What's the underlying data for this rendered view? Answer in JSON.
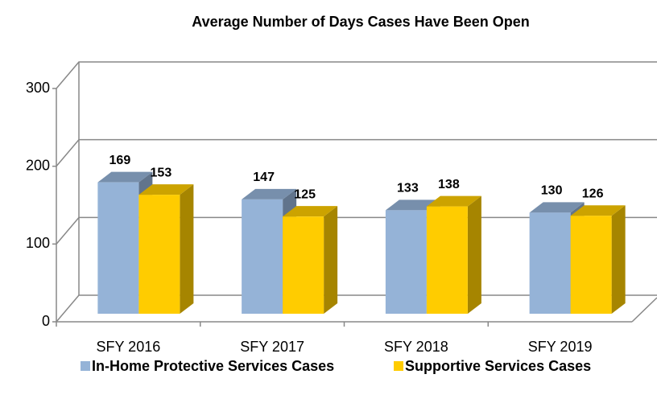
{
  "chart_data": {
    "type": "bar3d",
    "title": "Average Number of Days Cases Have Been Open",
    "categories": [
      "SFY 2016",
      "SFY 2017",
      "SFY 2018",
      "SFY 2019"
    ],
    "series": [
      {
        "name": "In-Home Protective Services Cases",
        "color": "#95b3d7",
        "values": [
          169,
          147,
          133,
          130
        ]
      },
      {
        "name": "Supportive Services Cases",
        "color": "#ffcc00",
        "values": [
          153,
          125,
          138,
          126
        ]
      }
    ],
    "ylim": [
      0,
      300
    ],
    "yticks": [
      0,
      100,
      200,
      300
    ],
    "grid": true,
    "legend": "bottom"
  }
}
